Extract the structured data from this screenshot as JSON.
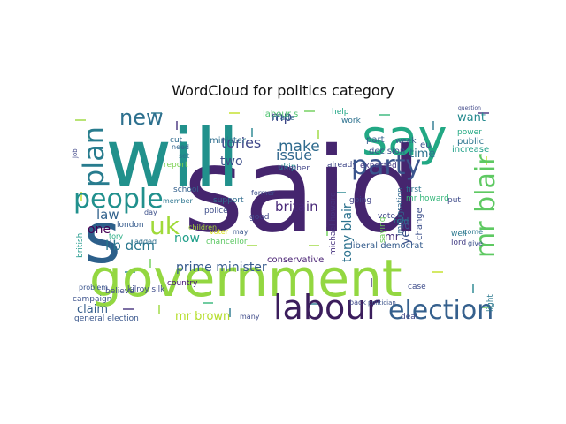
{
  "title": "WordCloud for politics category",
  "colors": {
    "background": "#ffffff",
    "title": "#111111"
  },
  "words": [
    {
      "text": "said",
      "color": "#45256e"
    },
    {
      "text": "will",
      "color": "#21918c"
    },
    {
      "text": "government",
      "color": "#93d741"
    },
    {
      "text": "say",
      "color": "#22a884"
    },
    {
      "text": "s",
      "color": "#2c5f8a"
    },
    {
      "text": "labour",
      "color": "#3b1d5c"
    },
    {
      "text": "election",
      "color": "#35608d"
    },
    {
      "text": "people",
      "color": "#21908d"
    },
    {
      "text": "party",
      "color": "#3a548c"
    },
    {
      "text": "mr blair",
      "color": "#5ec962"
    },
    {
      "text": "plan",
      "color": "#287c8e"
    },
    {
      "text": "new",
      "color": "#2d708e"
    },
    {
      "text": "uk",
      "color": "#a0da39"
    },
    {
      "text": "mp",
      "color": "#3e4989"
    },
    {
      "text": "make",
      "color": "#2f6b8e"
    },
    {
      "text": "issue",
      "color": "#31688e"
    },
    {
      "text": "time",
      "color": "#2c738e"
    },
    {
      "text": "want",
      "color": "#23898e"
    },
    {
      "text": "tories",
      "color": "#3f4788"
    },
    {
      "text": "law",
      "color": "#33638d"
    },
    {
      "text": "one",
      "color": "#440154"
    },
    {
      "text": "lib dem",
      "color": "#2a778e"
    },
    {
      "text": "now",
      "color": "#1f9e89"
    },
    {
      "text": "two",
      "color": "#3d4e8a"
    },
    {
      "text": "britain",
      "color": "#482878"
    },
    {
      "text": "tony blair",
      "color": "#2c728e"
    },
    {
      "text": "mr",
      "color": "#472c7a"
    },
    {
      "text": "year",
      "color": "#3b528b"
    },
    {
      "text": "prime minister",
      "color": "#375b8d"
    },
    {
      "text": "claim",
      "color": "#355f8d"
    },
    {
      "text": "mr brown",
      "color": "#b5de2b"
    },
    {
      "text": "minister",
      "color": "#2e6e8e"
    },
    {
      "text": "ukip",
      "color": "#25858e"
    },
    {
      "text": "labour s",
      "color": "#4ac16d"
    },
    {
      "text": "made",
      "color": "#31678e"
    },
    {
      "text": "public",
      "color": "#2b748e"
    },
    {
      "text": "increase",
      "color": "#1fa088"
    },
    {
      "text": "decision",
      "color": "#3a538b"
    },
    {
      "text": "part",
      "color": "#34618d"
    },
    {
      "text": "week",
      "color": "#38598c"
    },
    {
      "text": "help",
      "color": "#21a685"
    },
    {
      "text": "work",
      "color": "#2c718e"
    },
    {
      "text": "first",
      "color": "#2b758e"
    },
    {
      "text": "mr howard",
      "color": "#34b679"
    },
    {
      "text": "put",
      "color": "#3e4a89"
    },
    {
      "text": "well",
      "color": "#2a788e"
    },
    {
      "text": "lord",
      "color": "#433e85"
    },
    {
      "text": "change",
      "color": "#3c4f8a"
    },
    {
      "text": "going",
      "color": "#404387"
    },
    {
      "text": "told",
      "color": "#29798e"
    },
    {
      "text": "vote",
      "color": "#3f4889"
    },
    {
      "text": "michael howard",
      "color": "#46327e"
    },
    {
      "text": "liberal democrat",
      "color": "#365d8d"
    },
    {
      "text": "conservative",
      "color": "#482173"
    },
    {
      "text": "chancellor",
      "color": "#5cc863"
    },
    {
      "text": "voter",
      "color": "#d8e219"
    },
    {
      "text": "police",
      "color": "#3d4d8a"
    },
    {
      "text": "country",
      "color": "#440f76"
    },
    {
      "text": "kilroy silk",
      "color": "#3e4c8a"
    },
    {
      "text": "general election",
      "color": "#39568c"
    },
    {
      "text": "campaign",
      "color": "#3b518b"
    },
    {
      "text": "believe",
      "color": "#3f4889"
    },
    {
      "text": "british",
      "color": "#1f988b"
    },
    {
      "text": "london",
      "color": "#365c8d"
    },
    {
      "text": "tory",
      "color": "#25ac82"
    },
    {
      "text": "number",
      "color": "#414487"
    },
    {
      "text": "support",
      "color": "#2f6c8e"
    },
    {
      "text": "good",
      "color": "#404688"
    },
    {
      "text": "former",
      "color": "#3d4d8a"
    },
    {
      "text": "school",
      "color": "#34618d"
    },
    {
      "text": "report",
      "color": "#7ad151"
    },
    {
      "text": "need",
      "color": "#32658e"
    },
    {
      "text": "set",
      "color": "#2a768e"
    },
    {
      "text": "cut",
      "color": "#2f6b8e"
    },
    {
      "text": "may",
      "color": "#38578c"
    },
    {
      "text": "already",
      "color": "#3f4788"
    },
    {
      "text": "expected",
      "color": "#443a83"
    },
    {
      "text": "saying",
      "color": "#6ccd5a"
    },
    {
      "text": "immigration",
      "color": "#31688e"
    },
    {
      "text": "eu",
      "color": "#3b528b"
    },
    {
      "text": "power",
      "color": "#23a983"
    },
    {
      "text": "deal",
      "color": "#3f4788"
    },
    {
      "text": "case",
      "color": "#3e4c8a"
    },
    {
      "text": "come",
      "color": "#2a778e"
    },
    {
      "text": "give",
      "color": "#3b528b"
    },
    {
      "text": "day",
      "color": "#3c508b"
    },
    {
      "text": "added",
      "color": "#2e6f8e"
    },
    {
      "text": "member",
      "color": "#2b748e"
    },
    {
      "text": "children",
      "color": "#a5db36"
    },
    {
      "text": "problem",
      "color": "#3a548c"
    },
    {
      "text": "back",
      "color": "#3f4889"
    },
    {
      "text": "politician",
      "color": "#3b528b"
    },
    {
      "text": "question",
      "color": "#3f4788"
    },
    {
      "text": "light",
      "color": "#2a788e"
    },
    {
      "text": "many",
      "color": "#3e4a89"
    },
    {
      "text": "job",
      "color": "#3f4788"
    }
  ]
}
